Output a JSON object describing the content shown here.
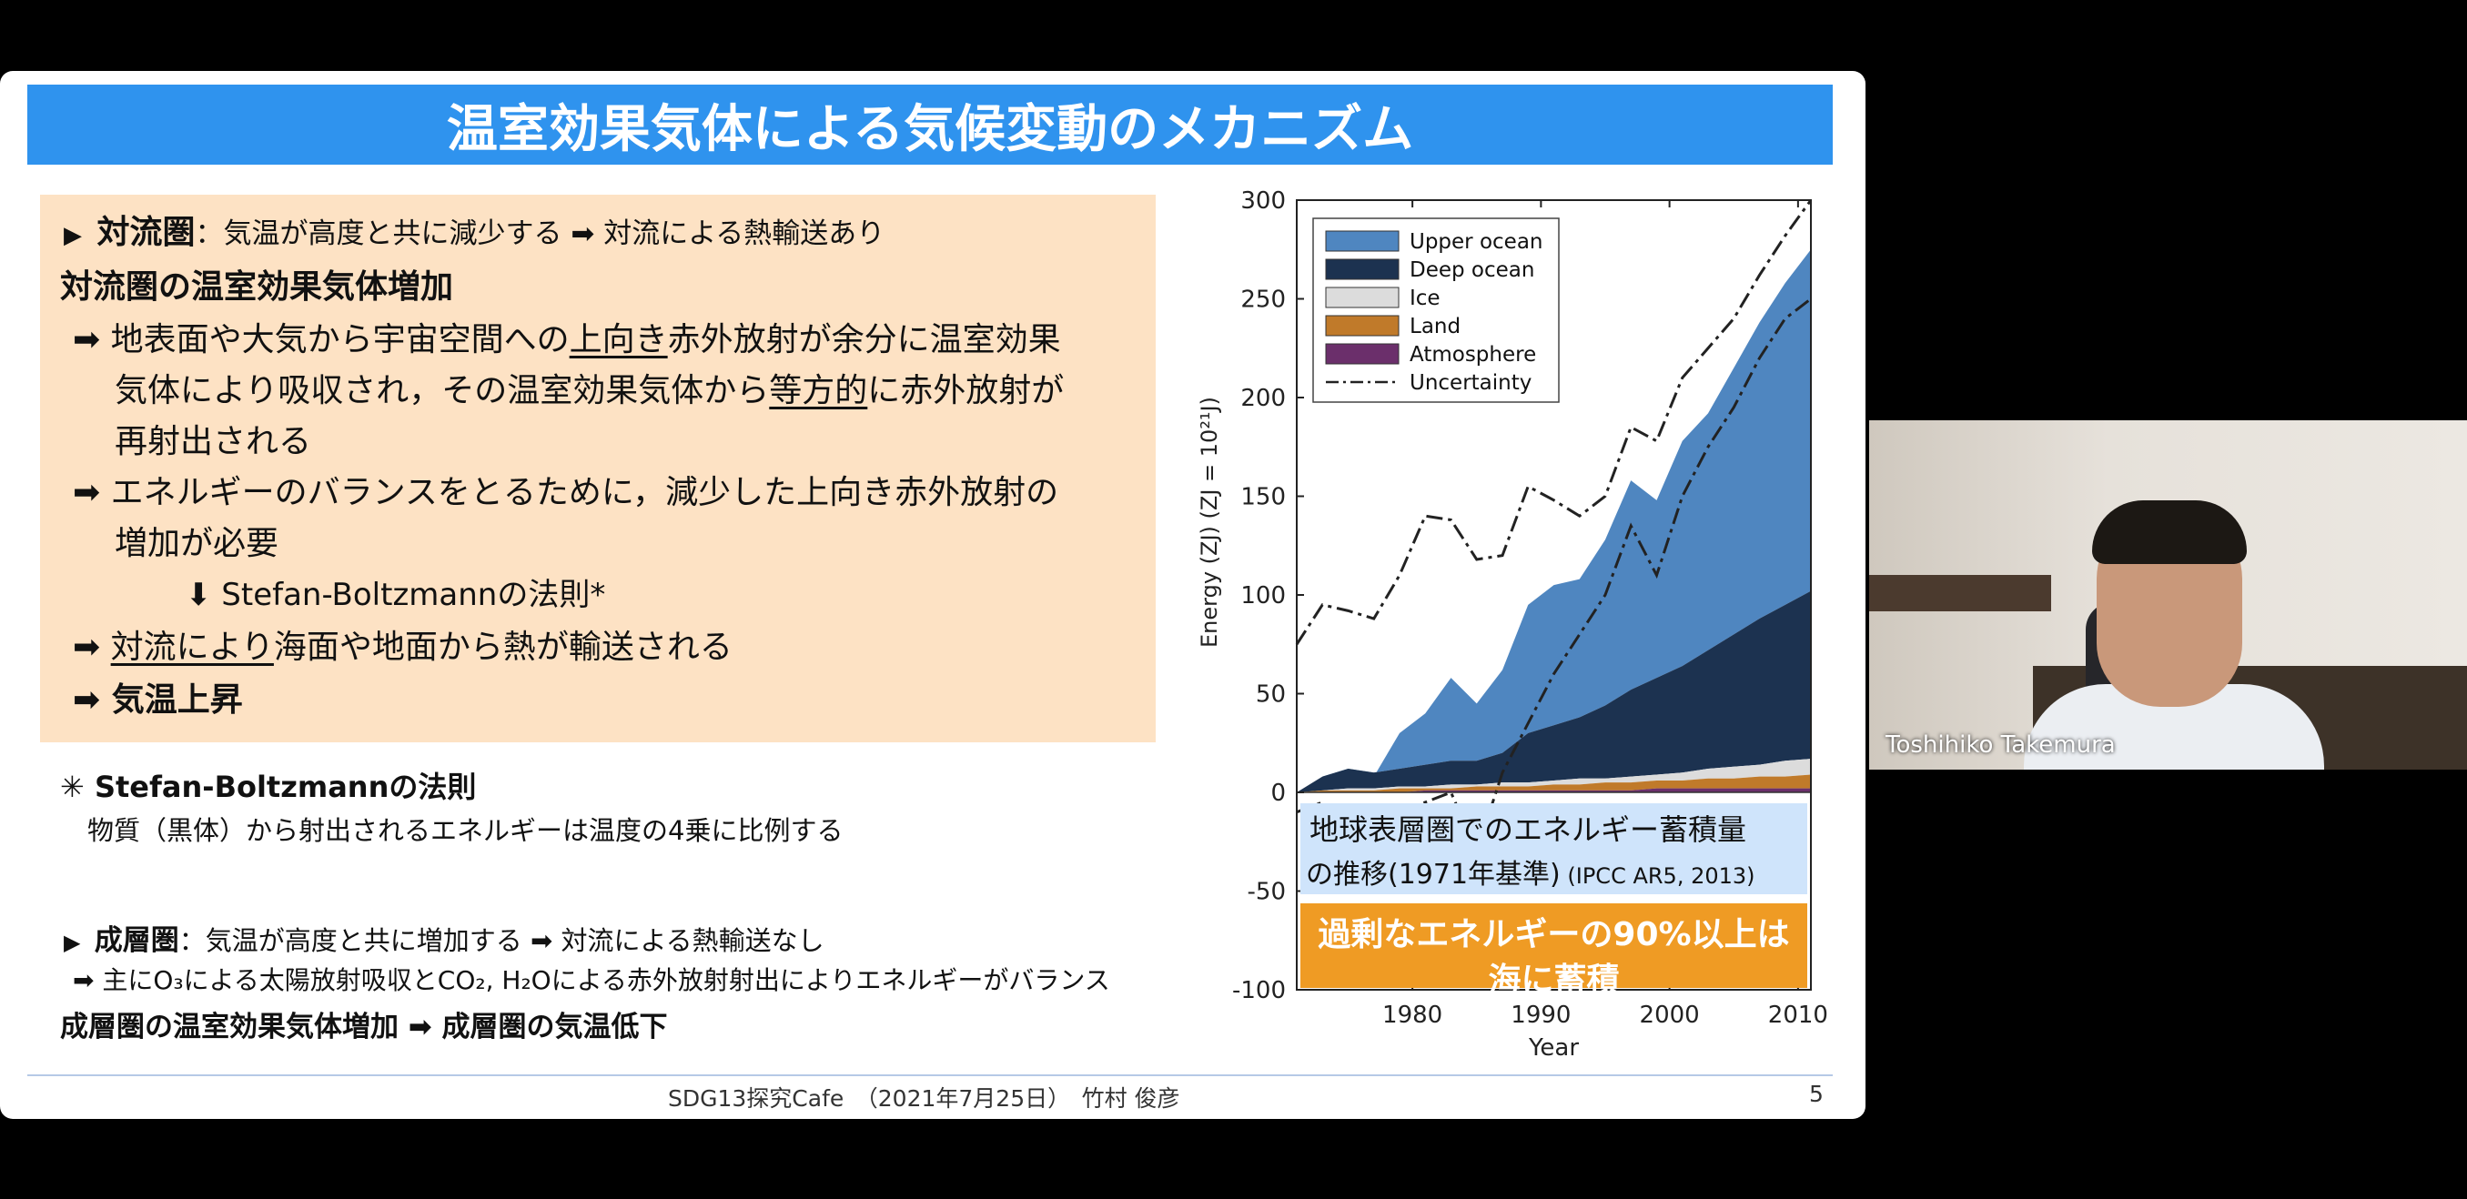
{
  "slide": {
    "title": "温室効果気体による気候変動のメカニズム",
    "box": {
      "troposphere_label": "対流圏",
      "troposphere_desc": "：気温が高度と共に減少する ➡ 対流による熱輸送あり",
      "increase_heading": "対流圏の温室効果気体増加",
      "arrow1_pre": "地表面や大気から宇宙空間への",
      "arrow1_u1": "上向き",
      "arrow1_post": "赤外放射が余分に温室効果",
      "arrow1_line2_pre": "気体により吸収され，その温室効果気体から",
      "arrow1_u2": "等方的",
      "arrow1_line2_post": "に赤外放射が",
      "arrow1_line3": "再射出される",
      "arrow2_line1": "エネルギーのバランスをとるために，減少した上向き赤外放射の",
      "arrow2_line2": "増加が必要",
      "sb_arrow": "⬇ Stefan-Boltzmannの法則*",
      "arrow3_u": "対流により",
      "arrow3_post": "海面や地面から熱が輸送される",
      "arrow4": "気温上昇"
    },
    "note_heading": "✳ Stefan-Boltzmannの法則",
    "note_text": "物質（黒体）から射出されるエネルギーは温度の4乗に比例する",
    "strat_label": "成層圏",
    "strat_desc": "：気温が高度と共に増加する ➡ 対流による熱輸送なし",
    "strat_balance": "➡ 主にO₃による太陽放射吸収とCO₂, H₂Oによる赤外放射射出によりエネルギーがバランス",
    "strat_conclusion": "成層圏の温室効果気体増加 ➡ 成層圏の気温低下",
    "footer_center": "SDG13探究Cafe　（2021年7月25日）　竹村 俊彦",
    "page_number": "5"
  },
  "chart_data": {
    "type": "area",
    "xlabel": "Year",
    "ylabel": "Energy (ZJ)   (ZJ = 10²¹J)",
    "xlim": [
      1971,
      2011
    ],
    "ylim": [
      -100,
      300
    ],
    "xticks": [
      1980,
      1990,
      2000,
      2010
    ],
    "yticks": [
      300,
      250,
      200,
      150,
      100,
      50,
      0,
      -50,
      -100
    ],
    "legend_position": "top-left",
    "x": [
      1971,
      1973,
      1975,
      1977,
      1979,
      1981,
      1983,
      1985,
      1987,
      1989,
      1991,
      1993,
      1995,
      1997,
      1999,
      2001,
      2003,
      2005,
      2007,
      2009,
      2011
    ],
    "series": [
      {
        "name": "Upper ocean",
        "color": "#4f86c0",
        "values": [
          0,
          8,
          10,
          8,
          30,
          40,
          58,
          45,
          62,
          95,
          105,
          108,
          128,
          158,
          148,
          178,
          192,
          215,
          238,
          258,
          275
        ]
      },
      {
        "name": "Deep ocean",
        "color": "#1c3250",
        "values": [
          0,
          8,
          12,
          10,
          12,
          14,
          16,
          16,
          20,
          30,
          34,
          38,
          44,
          52,
          58,
          64,
          72,
          80,
          88,
          95,
          102
        ]
      },
      {
        "name": "Ice",
        "color": "#dcdcdc",
        "values": [
          0,
          1,
          2,
          2,
          3,
          3,
          4,
          4,
          5,
          5,
          6,
          7,
          7,
          8,
          9,
          10,
          12,
          13,
          14,
          16,
          17
        ]
      },
      {
        "name": "Land",
        "color": "#c07a2a",
        "values": [
          0,
          1,
          1,
          1,
          2,
          2,
          2,
          3,
          3,
          3,
          4,
          4,
          5,
          5,
          6,
          6,
          7,
          7,
          8,
          8,
          9
        ]
      },
      {
        "name": "Atmosphere",
        "color": "#6b2f6b",
        "values": [
          0,
          0,
          0,
          0,
          0,
          1,
          1,
          1,
          1,
          1,
          1,
          1,
          1,
          1,
          2,
          2,
          2,
          2,
          2,
          2,
          2
        ]
      },
      {
        "name": "Uncertainty",
        "color": "#222222",
        "upper": [
          75,
          95,
          92,
          88,
          110,
          140,
          138,
          118,
          120,
          155,
          148,
          140,
          150,
          185,
          178,
          210,
          225,
          240,
          262,
          282,
          300
        ],
        "lower": [
          -10,
          -5,
          -15,
          -20,
          -10,
          -5,
          0,
          -30,
          10,
          35,
          60,
          80,
          100,
          135,
          110,
          150,
          175,
          195,
          220,
          240,
          250
        ]
      }
    ],
    "annotation_blue_line1": "地球表層圏でのエネルギー蓄積量",
    "annotation_blue_line2_main": "の推移(1971年基準)",
    "annotation_blue_line2_small": " (IPCC AR5, 2013)",
    "annotation_orange_line1": "過剰なエネルギーの90%以上は",
    "annotation_orange_line2": "海に蓄積"
  },
  "video": {
    "participant_name": "Toshihiko Takemura"
  }
}
